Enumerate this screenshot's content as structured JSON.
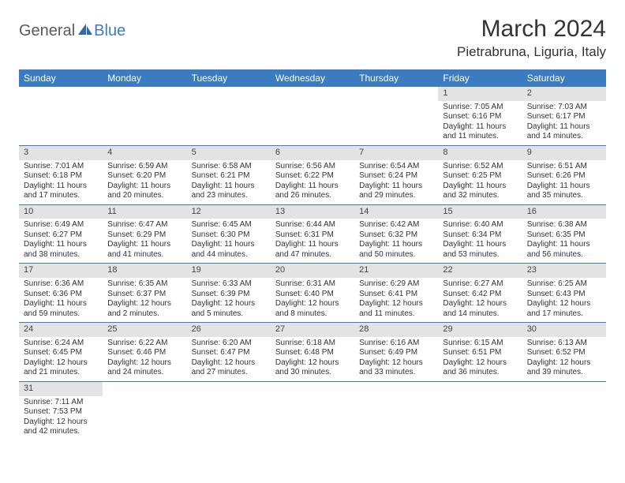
{
  "logo": {
    "text1": "General",
    "text2": "Blue"
  },
  "title": "March 2024",
  "location": "Pietrabruna, Liguria, Italy",
  "colors": {
    "header_bg": "#3b7bbf",
    "header_fg": "#ffffff",
    "daynum_bg": "#e3e3e3",
    "row_divider": "#3b7bbf",
    "page_bg": "#ffffff",
    "text": "#333333",
    "logo_gray": "#5a5a5a",
    "logo_blue": "#3b7bbf"
  },
  "fonts": {
    "title_size_pt": 30,
    "location_size_pt": 17,
    "dayheader_size_pt": 12,
    "daynum_size_pt": 11,
    "body_size_pt": 10
  },
  "day_headers": [
    "Sunday",
    "Monday",
    "Tuesday",
    "Wednesday",
    "Thursday",
    "Friday",
    "Saturday"
  ],
  "weeks": [
    [
      {
        "n": "",
        "sr": "",
        "ss": "",
        "dl": ""
      },
      {
        "n": "",
        "sr": "",
        "ss": "",
        "dl": ""
      },
      {
        "n": "",
        "sr": "",
        "ss": "",
        "dl": ""
      },
      {
        "n": "",
        "sr": "",
        "ss": "",
        "dl": ""
      },
      {
        "n": "",
        "sr": "",
        "ss": "",
        "dl": ""
      },
      {
        "n": "1",
        "sr": "Sunrise: 7:05 AM",
        "ss": "Sunset: 6:16 PM",
        "dl": "Daylight: 11 hours and 11 minutes."
      },
      {
        "n": "2",
        "sr": "Sunrise: 7:03 AM",
        "ss": "Sunset: 6:17 PM",
        "dl": "Daylight: 11 hours and 14 minutes."
      }
    ],
    [
      {
        "n": "3",
        "sr": "Sunrise: 7:01 AM",
        "ss": "Sunset: 6:18 PM",
        "dl": "Daylight: 11 hours and 17 minutes."
      },
      {
        "n": "4",
        "sr": "Sunrise: 6:59 AM",
        "ss": "Sunset: 6:20 PM",
        "dl": "Daylight: 11 hours and 20 minutes."
      },
      {
        "n": "5",
        "sr": "Sunrise: 6:58 AM",
        "ss": "Sunset: 6:21 PM",
        "dl": "Daylight: 11 hours and 23 minutes."
      },
      {
        "n": "6",
        "sr": "Sunrise: 6:56 AM",
        "ss": "Sunset: 6:22 PM",
        "dl": "Daylight: 11 hours and 26 minutes."
      },
      {
        "n": "7",
        "sr": "Sunrise: 6:54 AM",
        "ss": "Sunset: 6:24 PM",
        "dl": "Daylight: 11 hours and 29 minutes."
      },
      {
        "n": "8",
        "sr": "Sunrise: 6:52 AM",
        "ss": "Sunset: 6:25 PM",
        "dl": "Daylight: 11 hours and 32 minutes."
      },
      {
        "n": "9",
        "sr": "Sunrise: 6:51 AM",
        "ss": "Sunset: 6:26 PM",
        "dl": "Daylight: 11 hours and 35 minutes."
      }
    ],
    [
      {
        "n": "10",
        "sr": "Sunrise: 6:49 AM",
        "ss": "Sunset: 6:27 PM",
        "dl": "Daylight: 11 hours and 38 minutes."
      },
      {
        "n": "11",
        "sr": "Sunrise: 6:47 AM",
        "ss": "Sunset: 6:29 PM",
        "dl": "Daylight: 11 hours and 41 minutes."
      },
      {
        "n": "12",
        "sr": "Sunrise: 6:45 AM",
        "ss": "Sunset: 6:30 PM",
        "dl": "Daylight: 11 hours and 44 minutes."
      },
      {
        "n": "13",
        "sr": "Sunrise: 6:44 AM",
        "ss": "Sunset: 6:31 PM",
        "dl": "Daylight: 11 hours and 47 minutes."
      },
      {
        "n": "14",
        "sr": "Sunrise: 6:42 AM",
        "ss": "Sunset: 6:32 PM",
        "dl": "Daylight: 11 hours and 50 minutes."
      },
      {
        "n": "15",
        "sr": "Sunrise: 6:40 AM",
        "ss": "Sunset: 6:34 PM",
        "dl": "Daylight: 11 hours and 53 minutes."
      },
      {
        "n": "16",
        "sr": "Sunrise: 6:38 AM",
        "ss": "Sunset: 6:35 PM",
        "dl": "Daylight: 11 hours and 56 minutes."
      }
    ],
    [
      {
        "n": "17",
        "sr": "Sunrise: 6:36 AM",
        "ss": "Sunset: 6:36 PM",
        "dl": "Daylight: 11 hours and 59 minutes."
      },
      {
        "n": "18",
        "sr": "Sunrise: 6:35 AM",
        "ss": "Sunset: 6:37 PM",
        "dl": "Daylight: 12 hours and 2 minutes."
      },
      {
        "n": "19",
        "sr": "Sunrise: 6:33 AM",
        "ss": "Sunset: 6:39 PM",
        "dl": "Daylight: 12 hours and 5 minutes."
      },
      {
        "n": "20",
        "sr": "Sunrise: 6:31 AM",
        "ss": "Sunset: 6:40 PM",
        "dl": "Daylight: 12 hours and 8 minutes."
      },
      {
        "n": "21",
        "sr": "Sunrise: 6:29 AM",
        "ss": "Sunset: 6:41 PM",
        "dl": "Daylight: 12 hours and 11 minutes."
      },
      {
        "n": "22",
        "sr": "Sunrise: 6:27 AM",
        "ss": "Sunset: 6:42 PM",
        "dl": "Daylight: 12 hours and 14 minutes."
      },
      {
        "n": "23",
        "sr": "Sunrise: 6:25 AM",
        "ss": "Sunset: 6:43 PM",
        "dl": "Daylight: 12 hours and 17 minutes."
      }
    ],
    [
      {
        "n": "24",
        "sr": "Sunrise: 6:24 AM",
        "ss": "Sunset: 6:45 PM",
        "dl": "Daylight: 12 hours and 21 minutes."
      },
      {
        "n": "25",
        "sr": "Sunrise: 6:22 AM",
        "ss": "Sunset: 6:46 PM",
        "dl": "Daylight: 12 hours and 24 minutes."
      },
      {
        "n": "26",
        "sr": "Sunrise: 6:20 AM",
        "ss": "Sunset: 6:47 PM",
        "dl": "Daylight: 12 hours and 27 minutes."
      },
      {
        "n": "27",
        "sr": "Sunrise: 6:18 AM",
        "ss": "Sunset: 6:48 PM",
        "dl": "Daylight: 12 hours and 30 minutes."
      },
      {
        "n": "28",
        "sr": "Sunrise: 6:16 AM",
        "ss": "Sunset: 6:49 PM",
        "dl": "Daylight: 12 hours and 33 minutes."
      },
      {
        "n": "29",
        "sr": "Sunrise: 6:15 AM",
        "ss": "Sunset: 6:51 PM",
        "dl": "Daylight: 12 hours and 36 minutes."
      },
      {
        "n": "30",
        "sr": "Sunrise: 6:13 AM",
        "ss": "Sunset: 6:52 PM",
        "dl": "Daylight: 12 hours and 39 minutes."
      }
    ],
    [
      {
        "n": "31",
        "sr": "Sunrise: 7:11 AM",
        "ss": "Sunset: 7:53 PM",
        "dl": "Daylight: 12 hours and 42 minutes."
      },
      {
        "n": "",
        "sr": "",
        "ss": "",
        "dl": ""
      },
      {
        "n": "",
        "sr": "",
        "ss": "",
        "dl": ""
      },
      {
        "n": "",
        "sr": "",
        "ss": "",
        "dl": ""
      },
      {
        "n": "",
        "sr": "",
        "ss": "",
        "dl": ""
      },
      {
        "n": "",
        "sr": "",
        "ss": "",
        "dl": ""
      },
      {
        "n": "",
        "sr": "",
        "ss": "",
        "dl": ""
      }
    ]
  ]
}
